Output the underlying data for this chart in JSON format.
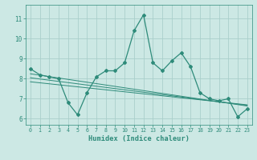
{
  "title": "",
  "xlabel": "Humidex (Indice chaleur)",
  "x": [
    0,
    1,
    2,
    3,
    4,
    5,
    6,
    7,
    8,
    9,
    10,
    11,
    12,
    13,
    14,
    15,
    16,
    17,
    18,
    19,
    20,
    21,
    22,
    23
  ],
  "y_main": [
    8.5,
    8.2,
    8.1,
    8.0,
    6.8,
    6.2,
    7.3,
    8.1,
    8.4,
    8.4,
    8.8,
    10.4,
    11.2,
    8.8,
    8.4,
    8.9,
    9.3,
    8.6,
    7.3,
    7.0,
    6.9,
    7.0,
    6.1,
    6.5
  ],
  "y_trend1": [
    8.25,
    8.18,
    8.11,
    8.04,
    7.97,
    7.9,
    7.83,
    7.76,
    7.69,
    7.62,
    7.55,
    7.48,
    7.41,
    7.34,
    7.27,
    7.2,
    7.13,
    7.06,
    6.99,
    6.92,
    6.85,
    6.78,
    6.71,
    6.64
  ],
  "y_trend2": [
    8.05,
    7.99,
    7.93,
    7.87,
    7.81,
    7.75,
    7.69,
    7.63,
    7.57,
    7.51,
    7.45,
    7.39,
    7.33,
    7.27,
    7.21,
    7.15,
    7.09,
    7.03,
    6.97,
    6.91,
    6.85,
    6.79,
    6.73,
    6.67
  ],
  "y_trend3": [
    7.85,
    7.8,
    7.75,
    7.7,
    7.65,
    7.6,
    7.55,
    7.5,
    7.45,
    7.4,
    7.35,
    7.3,
    7.25,
    7.2,
    7.15,
    7.1,
    7.05,
    7.0,
    6.95,
    6.9,
    6.85,
    6.8,
    6.75,
    6.7
  ],
  "line_color": "#2e8b7a",
  "bg_color": "#cce8e4",
  "grid_color": "#aacfcb",
  "ylim": [
    5.7,
    11.7
  ],
  "xlim": [
    -0.5,
    23.5
  ],
  "yticks": [
    6,
    7,
    8,
    9,
    10,
    11
  ],
  "xticks": [
    0,
    1,
    2,
    3,
    4,
    5,
    6,
    7,
    8,
    9,
    10,
    11,
    12,
    13,
    14,
    15,
    16,
    17,
    18,
    19,
    20,
    21,
    22,
    23
  ]
}
